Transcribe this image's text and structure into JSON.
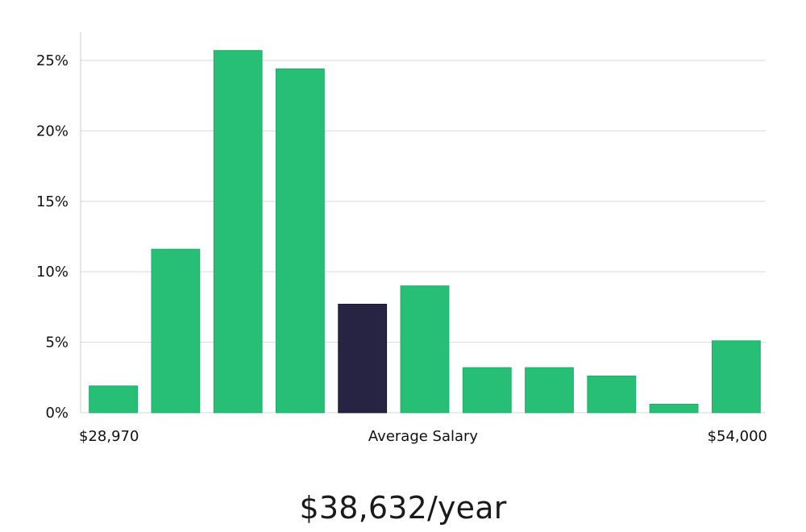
{
  "chart_data": {
    "type": "bar",
    "title": "",
    "xlabel": "Average Salary",
    "ylabel": "",
    "x_min_label": "$28,970",
    "x_max_label": "$54,000",
    "ylim": [
      0,
      27
    ],
    "yticks": [
      0,
      5,
      10,
      15,
      20,
      25
    ],
    "ytick_labels": [
      "0%",
      "5%",
      "10%",
      "15%",
      "20%",
      "25%"
    ],
    "values": [
      1.9,
      11.6,
      25.7,
      24.4,
      7.7,
      9.0,
      3.2,
      3.2,
      2.6,
      0.6,
      5.1
    ],
    "highlight_index": 4,
    "grid": true,
    "colors": {
      "bar": "#27be76",
      "highlight": "#272443",
      "grid": "#d9d9d9",
      "axis": "#cccccc"
    }
  },
  "salary": {
    "headline": "$38,632/year"
  }
}
